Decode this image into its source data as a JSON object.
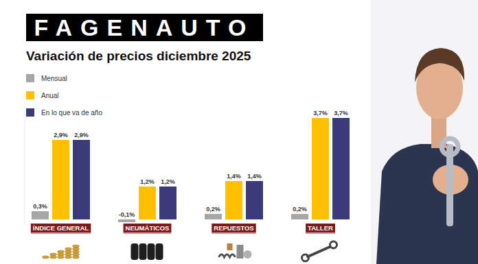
{
  "chart_data": {
    "type": "bar",
    "logo": "FAGENAUTO",
    "title": "Variación de precios diciembre 2025",
    "categories": [
      "ÍNDICE GENERAL",
      "NEUMÁTICOS",
      "REPUESTOS",
      "TALLER"
    ],
    "series": [
      {
        "name": "Mensual",
        "color": "#a6a6a6",
        "values": [
          0.3,
          -0.1,
          0.2,
          0.2
        ],
        "value_labels": [
          "0,3%",
          "-0,1%",
          "0,2%",
          "0,2%"
        ]
      },
      {
        "name": "Anual",
        "color": "#ffc000",
        "values": [
          2.9,
          1.2,
          1.4,
          3.7
        ],
        "value_labels": [
          "2,9%",
          "1,2%",
          "1,4%",
          "3,7%"
        ]
      },
      {
        "name": "En lo que va de año",
        "color": "#3b3a7a",
        "values": [
          2.9,
          1.2,
          1.4,
          3.7
        ],
        "value_labels": [
          "2,9%",
          "1,2%",
          "1,4%",
          "3,7%"
        ]
      }
    ],
    "ylim": [
      -0.2,
      4.0
    ],
    "data_labels": true,
    "tick_labels": false,
    "grid": false,
    "legend": "top-left"
  }
}
